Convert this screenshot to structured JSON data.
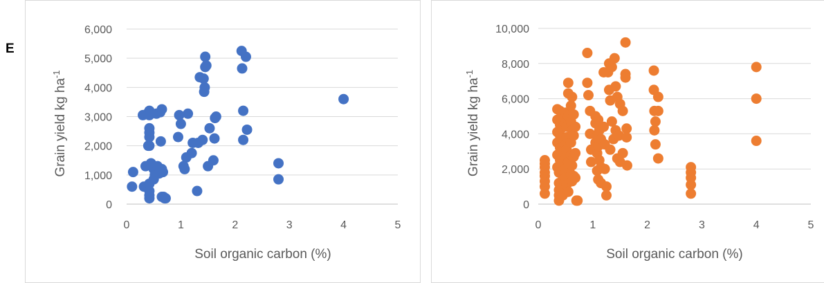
{
  "panel_label": "E",
  "chart_data": [
    {
      "type": "scatter",
      "xlabel": "Soil organic carbon (%)",
      "ylabel": "Grain yield kg ha",
      "ylabel_sup": "-1",
      "xlim": [
        0,
        5
      ],
      "ylim": [
        0,
        6000
      ],
      "x_ticks": [
        0,
        1,
        2,
        3,
        4,
        5
      ],
      "y_ticks": [
        0,
        1000,
        2000,
        3000,
        4000,
        5000,
        6000
      ],
      "x_tick_labels": [
        "0",
        "1",
        "2",
        "3",
        "4",
        "5"
      ],
      "y_tick_labels": [
        "0",
        "1,000",
        "2,000",
        "3,000",
        "4,000",
        "5,000",
        "6,000"
      ],
      "grid": "horizontal",
      "color": "#4472c4",
      "series": [
        {
          "x": [
            0.1,
            0.12,
            0.3,
            0.32,
            0.35,
            0.38,
            0.4,
            0.4,
            0.42,
            0.42,
            0.42,
            0.42,
            0.42,
            0.42,
            0.42,
            0.42,
            0.42,
            0.42,
            0.45,
            0.5,
            0.5,
            0.52,
            0.55,
            0.55,
            0.57,
            0.6,
            0.62,
            0.63,
            0.65,
            0.65,
            0.65,
            0.67,
            0.68,
            0.7,
            0.72,
            0.95,
            0.97,
            1.0,
            1.05,
            1.07,
            1.1,
            1.13,
            1.2,
            1.22,
            1.3,
            1.32,
            1.35,
            1.4,
            1.42,
            1.43,
            1.44,
            1.45,
            1.45,
            1.47,
            1.5,
            1.53,
            1.6,
            1.62,
            1.63,
            1.65,
            2.12,
            2.13,
            2.15,
            2.15,
            2.2,
            2.22,
            2.8,
            2.8,
            4.0
          ],
          "y": [
            600,
            1100,
            3050,
            600,
            1300,
            3100,
            650,
            2000,
            200,
            300,
            450,
            700,
            2000,
            2300,
            2450,
            2600,
            3200,
            3050,
            1400,
            850,
            1200,
            1000,
            1150,
            3100,
            1300,
            1050,
            3150,
            2150,
            250,
            1200,
            3250,
            1100,
            250,
            200,
            200,
            2300,
            3050,
            2750,
            1300,
            1200,
            1600,
            3100,
            1750,
            2100,
            450,
            2100,
            4350,
            2200,
            4300,
            3850,
            4000,
            4700,
            5050,
            4750,
            1300,
            2600,
            1500,
            2250,
            2950,
            3000,
            5250,
            4650,
            3200,
            2200,
            5050,
            2550,
            1400,
            850,
            3600
          ]
        }
      ]
    },
    {
      "type": "scatter",
      "xlabel": "Soil organic carbon (%)",
      "ylabel": "Grain yield kg ha",
      "ylabel_sup": "-1",
      "xlim": [
        0,
        5
      ],
      "ylim": [
        0,
        10000
      ],
      "x_ticks": [
        0,
        1,
        2,
        3,
        4,
        5
      ],
      "y_ticks": [
        0,
        2000,
        4000,
        6000,
        8000,
        10000
      ],
      "x_tick_labels": [
        "0",
        "1",
        "2",
        "3",
        "4",
        "5"
      ],
      "y_tick_labels": [
        "0",
        "2,000",
        "4,000",
        "6,000",
        "8,000",
        "10,000"
      ],
      "grid": "horizontal",
      "color": "#ed7d31",
      "series": [
        {
          "x": [
            0.12,
            0.12,
            0.12,
            0.12,
            0.12,
            0.12,
            0.12,
            0.12,
            0.35,
            0.35,
            0.35,
            0.35,
            0.35,
            0.35,
            0.38,
            0.38,
            0.38,
            0.38,
            0.38,
            0.4,
            0.4,
            0.4,
            0.4,
            0.4,
            0.42,
            0.42,
            0.42,
            0.42,
            0.42,
            0.45,
            0.45,
            0.45,
            0.45,
            0.5,
            0.5,
            0.5,
            0.5,
            0.5,
            0.5,
            0.52,
            0.52,
            0.52,
            0.52,
            0.55,
            0.55,
            0.55,
            0.55,
            0.55,
            0.6,
            0.6,
            0.6,
            0.6,
            0.6,
            0.62,
            0.62,
            0.62,
            0.62,
            0.65,
            0.65,
            0.65,
            0.65,
            0.68,
            0.68,
            0.68,
            0.7,
            0.72,
            0.9,
            0.9,
            0.92,
            0.95,
            0.95,
            0.97,
            0.97,
            1.05,
            1.05,
            1.05,
            1.08,
            1.08,
            1.08,
            1.1,
            1.1,
            1.1,
            1.12,
            1.12,
            1.15,
            1.15,
            1.15,
            1.2,
            1.2,
            1.22,
            1.22,
            1.25,
            1.25,
            1.28,
            1.3,
            1.3,
            1.32,
            1.32,
            1.35,
            1.35,
            1.38,
            1.4,
            1.42,
            1.42,
            1.45,
            1.45,
            1.48,
            1.5,
            1.5,
            1.55,
            1.55,
            1.6,
            1.6,
            1.6,
            1.62,
            1.62,
            1.63,
            2.12,
            2.12,
            2.13,
            2.13,
            2.15,
            2.15,
            2.2,
            2.2,
            2.2,
            2.8,
            2.8,
            2.8,
            2.8,
            2.8,
            4.0,
            4.0,
            4.0
          ],
          "y": [
            600,
            1000,
            1300,
            1600,
            1800,
            2100,
            2300,
            2500,
            5400,
            4800,
            4100,
            3500,
            2800,
            2100,
            1800,
            1200,
            800,
            500,
            200,
            5300,
            4500,
            3900,
            3200,
            2500,
            4900,
            4300,
            3700,
            3000,
            2300,
            1900,
            1400,
            900,
            500,
            5200,
            4600,
            3400,
            2600,
            2000,
            1500,
            4400,
            3800,
            3100,
            1100,
            6900,
            6300,
            5000,
            2400,
            700,
            5600,
            4700,
            3500,
            2800,
            1700,
            6100,
            4200,
            2200,
            1300,
            5100,
            3900,
            2700,
            1600,
            4400,
            2900,
            1500,
            200,
            200,
            8600,
            6900,
            6200,
            5300,
            4000,
            3100,
            2400,
            5000,
            4600,
            3500,
            3900,
            2900,
            1900,
            4800,
            3300,
            1400,
            4200,
            2500,
            3700,
            2100,
            1200,
            7500,
            4400,
            3400,
            2000,
            1000,
            500,
            7500,
            8000,
            6500,
            5900,
            3100,
            7800,
            4700,
            3700,
            8300,
            6700,
            4200,
            6100,
            2600,
            3900,
            5700,
            2400,
            5300,
            2900,
            9200,
            7400,
            7200,
            4300,
            3800,
            2200,
            7600,
            6500,
            5300,
            4200,
            4700,
            3400,
            6100,
            5300,
            2600,
            2100,
            1800,
            1500,
            1100,
            600,
            7800,
            6000,
            3600
          ]
        }
      ]
    }
  ]
}
